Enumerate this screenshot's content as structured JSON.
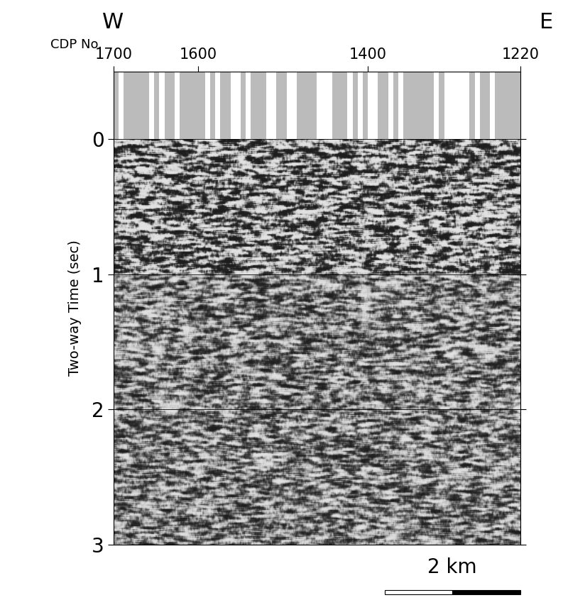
{
  "chart_data": {
    "type": "seismic_section",
    "labels": {
      "west": "W",
      "east": "E"
    },
    "x_label": "CDP No.",
    "y_label": "Two-way Time (sec)",
    "xlim": [
      1700,
      1220
    ],
    "xticks": [
      1700,
      1600,
      1400,
      1220
    ],
    "ylim": [
      3,
      -0.5
    ],
    "yticks": [
      0,
      1,
      2,
      3
    ],
    "grid": true,
    "scale_bar": {
      "label": "2 km",
      "length": 160
    }
  }
}
